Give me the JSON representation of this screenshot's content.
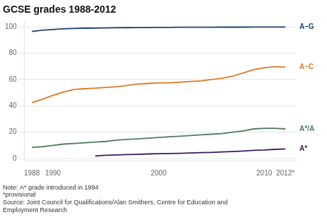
{
  "chart_data": {
    "type": "line",
    "title": "GCSE grades 1988-2012",
    "annotations": [
      "Note: A* grade introduced in 1994",
      "*provisional",
      "Source: Joint Council for Qualifications/Alan Smithers, Centre for Education and",
      "Employment Research"
    ],
    "xlim": [
      1987.3,
      2013.0
    ],
    "xticks": [
      1988,
      1990,
      2000,
      2010,
      {
        "value": 2012,
        "label": "2012*"
      }
    ],
    "ylim": [
      -2,
      105
    ],
    "yticks": [
      0,
      20,
      40,
      60,
      80,
      100
    ],
    "grid": "y",
    "series": [
      {
        "name": "A–G",
        "color": "#1c3f6e",
        "x": [
          1988,
          1989,
          1990,
          1991,
          1992,
          1993,
          1994,
          1995,
          1996,
          1997,
          1998,
          1999,
          2000,
          2001,
          2002,
          2003,
          2004,
          2005,
          2006,
          2007,
          2008,
          2009,
          2010,
          2011,
          2012
        ],
        "values": [
          96.5,
          97.5,
          98.0,
          98.5,
          98.8,
          99.0,
          99.1,
          99.2,
          99.3,
          99.4,
          99.5,
          99.5,
          99.6,
          99.6,
          99.7,
          99.7,
          99.7,
          99.7,
          99.8,
          99.8,
          99.8,
          99.9,
          99.9,
          99.9,
          99.9
        ]
      },
      {
        "name": "A–C",
        "color": "#e07820",
        "x": [
          1988,
          1989,
          1990,
          1991,
          1992,
          1993,
          1994,
          1995,
          1996,
          1997,
          1998,
          1999,
          2000,
          2001,
          2002,
          2003,
          2004,
          2005,
          2006,
          2007,
          2008,
          2009,
          2010,
          2011,
          2012
        ],
        "values": [
          42.5,
          45.0,
          48.0,
          50.5,
          52.5,
          53.0,
          53.5,
          54.0,
          54.5,
          55.5,
          56.5,
          57.0,
          57.5,
          57.5,
          58.0,
          58.5,
          59.0,
          60.0,
          61.0,
          62.5,
          65.0,
          67.5,
          69.0,
          69.8,
          69.4
        ]
      },
      {
        "name": "A*/A",
        "color": "#4d7c5d",
        "x": [
          1988,
          1989,
          1990,
          1991,
          1992,
          1993,
          1994,
          1995,
          1996,
          1997,
          1998,
          1999,
          2000,
          2001,
          2002,
          2003,
          2004,
          2005,
          2006,
          2007,
          2008,
          2009,
          2010,
          2011,
          2012
        ],
        "values": [
          8.5,
          9.0,
          10.0,
          11.0,
          11.5,
          12.0,
          12.5,
          13.0,
          14.0,
          14.5,
          15.0,
          15.5,
          16.0,
          16.5,
          17.0,
          17.5,
          18.0,
          18.5,
          19.0,
          20.0,
          21.0,
          22.5,
          23.0,
          23.0,
          22.5
        ]
      },
      {
        "name": "A*",
        "color": "#3a1a5c",
        "x": [
          1994,
          1995,
          1996,
          1997,
          1998,
          1999,
          2000,
          2001,
          2002,
          2003,
          2004,
          2005,
          2006,
          2007,
          2008,
          2009,
          2010,
          2011,
          2012
        ],
        "values": [
          2.0,
          2.5,
          2.8,
          3.0,
          3.2,
          3.5,
          3.7,
          3.8,
          4.0,
          4.2,
          4.5,
          4.7,
          5.0,
          5.3,
          5.7,
          6.2,
          6.5,
          7.0,
          7.3
        ]
      }
    ]
  }
}
